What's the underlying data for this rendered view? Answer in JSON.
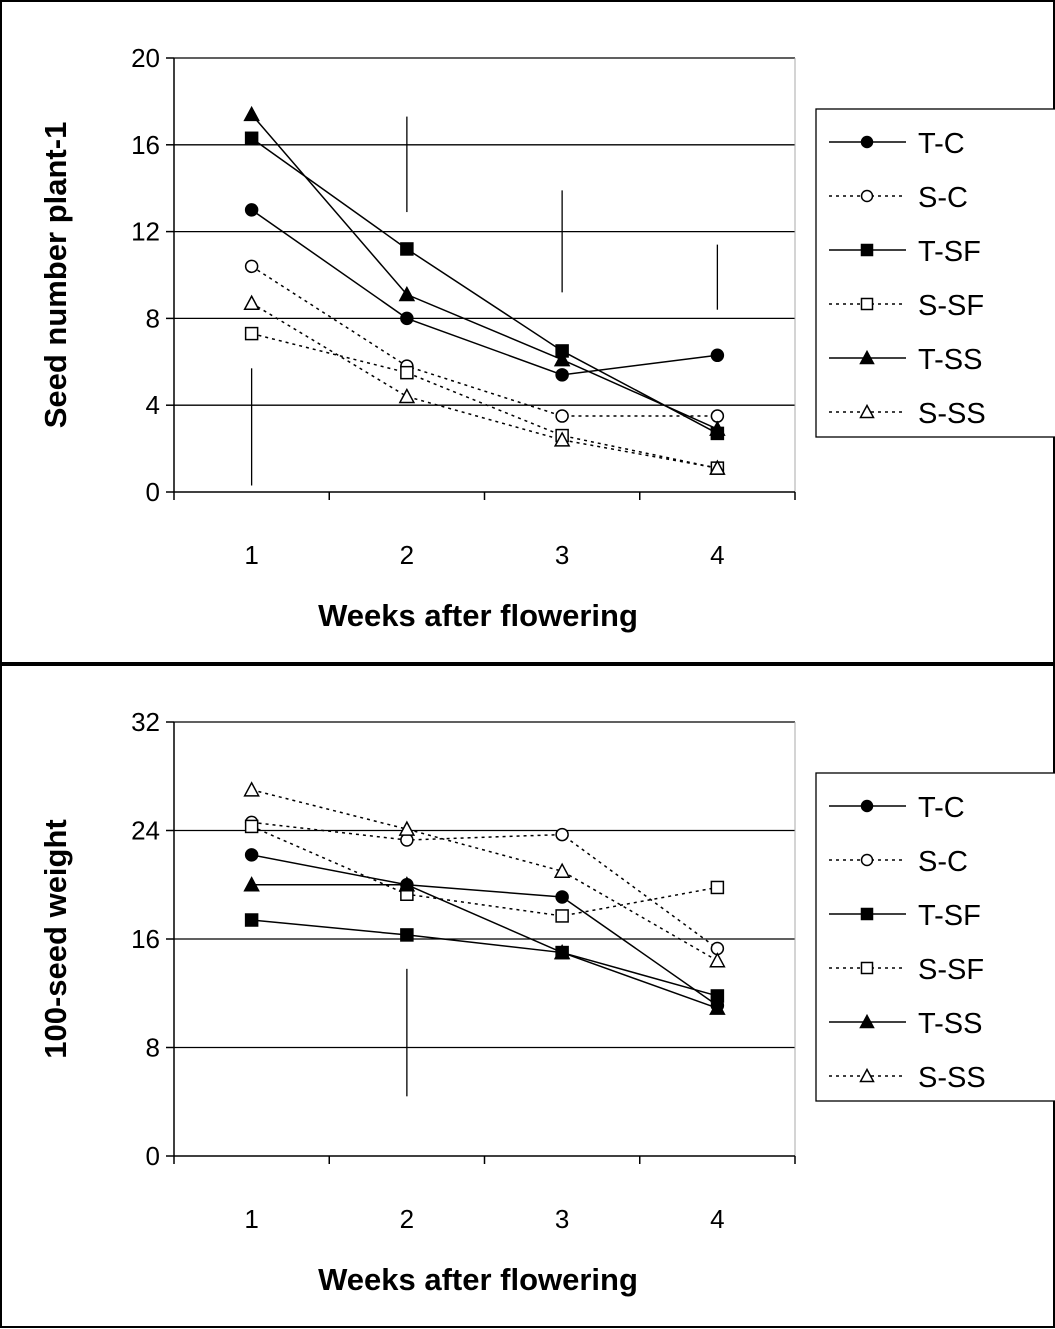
{
  "chart_data": [
    {
      "type": "line",
      "title": "",
      "xlabel": "Weeks after flowering",
      "ylabel": "Seed number plant-1",
      "categories": [
        "1",
        "2",
        "3",
        "4"
      ],
      "ylim": [
        0,
        20
      ],
      "yticks": [
        0,
        4,
        8,
        12,
        16,
        20
      ],
      "grid": true,
      "legend": "right",
      "series": [
        {
          "name": "T-C",
          "values": [
            13.0,
            8.0,
            5.4,
            6.3
          ],
          "marker": "circle",
          "filled": true,
          "dashed": false
        },
        {
          "name": "S-C",
          "values": [
            10.4,
            5.8,
            3.5,
            3.5
          ],
          "marker": "circle",
          "filled": false,
          "dashed": true
        },
        {
          "name": "T-SF",
          "values": [
            16.3,
            11.2,
            6.5,
            2.7
          ],
          "marker": "square",
          "filled": true,
          "dashed": false
        },
        {
          "name": "S-SF",
          "values": [
            7.3,
            5.5,
            2.6,
            1.1
          ],
          "marker": "square",
          "filled": false,
          "dashed": true
        },
        {
          "name": "T-SS",
          "values": [
            17.4,
            9.1,
            6.1,
            2.9
          ],
          "marker": "triangle",
          "filled": true,
          "dashed": false
        },
        {
          "name": "S-SS",
          "values": [
            8.7,
            4.4,
            2.4,
            1.1
          ],
          "marker": "triangle",
          "filled": false,
          "dashed": true
        }
      ],
      "error_bars": [
        {
          "x": 1,
          "low": 0.3,
          "high": 5.7
        },
        {
          "x": 2,
          "low": 12.9,
          "high": 17.3
        },
        {
          "x": 3,
          "low": 9.2,
          "high": 13.9
        },
        {
          "x": 4,
          "low": 8.4,
          "high": 11.4
        }
      ]
    },
    {
      "type": "line",
      "title": "",
      "xlabel": "Weeks after flowering",
      "ylabel": "100-seed weight",
      "categories": [
        "1",
        "2",
        "3",
        "4"
      ],
      "ylim": [
        0,
        32
      ],
      "yticks": [
        0,
        8,
        16,
        24,
        32
      ],
      "grid": true,
      "legend": "right",
      "series": [
        {
          "name": "T-C",
          "values": [
            22.2,
            20.0,
            19.1,
            11.1
          ],
          "marker": "circle",
          "filled": true,
          "dashed": false
        },
        {
          "name": "S-C",
          "values": [
            24.6,
            23.3,
            23.7,
            15.3
          ],
          "marker": "circle",
          "filled": false,
          "dashed": true
        },
        {
          "name": "T-SF",
          "values": [
            17.4,
            16.3,
            15.0,
            11.8
          ],
          "marker": "square",
          "filled": true,
          "dashed": false
        },
        {
          "name": "S-SF",
          "values": [
            24.3,
            19.3,
            17.7,
            19.8
          ],
          "marker": "square",
          "filled": false,
          "dashed": true
        },
        {
          "name": "T-SS",
          "values": [
            20.0,
            20.0,
            15.0,
            10.9
          ],
          "marker": "triangle",
          "filled": true,
          "dashed": false
        },
        {
          "name": "S-SS",
          "values": [
            27.0,
            24.1,
            21.0,
            14.4
          ],
          "marker": "triangle",
          "filled": false,
          "dashed": true
        }
      ],
      "error_bars": [
        {
          "x": 2,
          "low": 4.4,
          "high": 13.8
        }
      ]
    }
  ]
}
